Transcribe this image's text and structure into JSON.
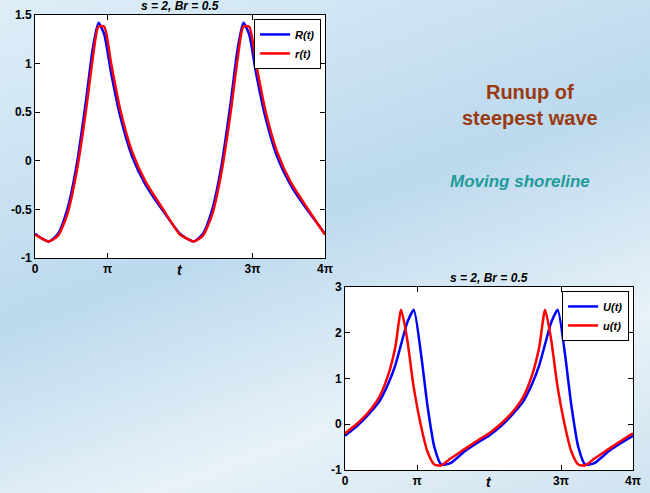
{
  "chart_data": [
    {
      "type": "line",
      "title": "s = 2, Br = 0.5",
      "xlabel": "t",
      "x": [
        0,
        0.3,
        0.6,
        1.0,
        1.4,
        1.8,
        2.2,
        2.5,
        2.75,
        3.0,
        3.3,
        3.7,
        4.2,
        4.8,
        5.5,
        6.28,
        6.58,
        6.88,
        7.28,
        7.68,
        8.08,
        8.48,
        8.78,
        9.03,
        9.28,
        9.58,
        9.98,
        10.48,
        11.08,
        11.78,
        12.566
      ],
      "series": [
        {
          "name": "R(t)",
          "color": "#0000ff",
          "values": [
            -0.75,
            -0.8,
            -0.83,
            -0.75,
            -0.5,
            -0.05,
            0.6,
            1.15,
            1.42,
            1.3,
            0.9,
            0.45,
            0.05,
            -0.25,
            -0.5,
            -0.75,
            -0.8,
            -0.83,
            -0.75,
            -0.5,
            -0.05,
            0.6,
            1.15,
            1.42,
            1.3,
            0.9,
            0.45,
            0.05,
            -0.25,
            -0.5,
            -0.75
          ]
        },
        {
          "name": "r(t)",
          "color": "#ff0000",
          "values": [
            -0.76,
            -0.8,
            -0.83,
            -0.77,
            -0.55,
            -0.12,
            0.5,
            1.05,
            1.38,
            1.38,
            1.0,
            0.52,
            0.1,
            -0.22,
            -0.48,
            -0.76,
            -0.8,
            -0.83,
            -0.77,
            -0.55,
            -0.12,
            0.5,
            1.05,
            1.38,
            1.38,
            1.0,
            0.52,
            0.1,
            -0.22,
            -0.48,
            -0.76
          ]
        }
      ],
      "xlim": [
        0,
        12.566
      ],
      "xticks": [
        0,
        {
          "value": 3.1416,
          "label": "π"
        },
        {
          "value": 9.4248,
          "label": "3π"
        },
        {
          "value": 12.566,
          "label": "4π"
        }
      ],
      "ylim": [
        -1,
        1.5
      ],
      "yticks": [
        -1,
        -0.5,
        0,
        0.5,
        1,
        1.5
      ],
      "grid": false,
      "legend": "top right"
    },
    {
      "type": "line",
      "title": "s = 2, Br = 0.5",
      "xlabel": "t",
      "x": [
        0,
        0.5,
        1.0,
        1.5,
        1.9,
        2.2,
        2.45,
        2.7,
        3.0,
        3.3,
        3.6,
        3.9,
        4.2,
        4.6,
        5.2,
        5.8,
        6.28,
        6.78,
        7.28,
        7.78,
        8.18,
        8.48,
        8.73,
        8.98,
        9.28,
        9.58,
        9.88,
        10.18,
        10.48,
        10.88,
        11.48,
        12.08,
        12.566
      ],
      "series": [
        {
          "name": "U(t)",
          "color": "#0000ff",
          "values": [
            -0.25,
            -0.05,
            0.2,
            0.5,
            0.9,
            1.3,
            1.75,
            2.2,
            2.5,
            1.6,
            0.4,
            -0.5,
            -0.88,
            -0.85,
            -0.6,
            -0.4,
            -0.25,
            -0.05,
            0.2,
            0.5,
            0.9,
            1.3,
            1.75,
            2.2,
            2.5,
            1.6,
            0.4,
            -0.5,
            -0.88,
            -0.85,
            -0.6,
            -0.4,
            -0.25
          ]
        },
        {
          "name": "u(t)",
          "color": "#ff0000",
          "values": [
            -0.2,
            0.0,
            0.25,
            0.6,
            1.1,
            1.7,
            2.5,
            1.9,
            0.8,
            0.0,
            -0.6,
            -0.88,
            -0.9,
            -0.75,
            -0.55,
            -0.35,
            -0.2,
            0.0,
            0.25,
            0.6,
            1.1,
            1.7,
            2.5,
            1.9,
            0.8,
            0.0,
            -0.6,
            -0.88,
            -0.9,
            -0.75,
            -0.55,
            -0.35,
            -0.2
          ]
        }
      ],
      "xlim": [
        0,
        12.566
      ],
      "xticks": [
        0,
        {
          "value": 3.1416,
          "label": "π"
        },
        {
          "value": 9.4248,
          "label": "3π"
        },
        {
          "value": 12.566,
          "label": "4π"
        }
      ],
      "ylim": [
        -1,
        3
      ],
      "yticks": [
        -1,
        0,
        1,
        2,
        3
      ],
      "grid": false,
      "legend": "top right"
    }
  ],
  "slide": {
    "title": [
      "Runup of",
      "steepest wave"
    ],
    "subtitle": "Moving shoreline"
  }
}
